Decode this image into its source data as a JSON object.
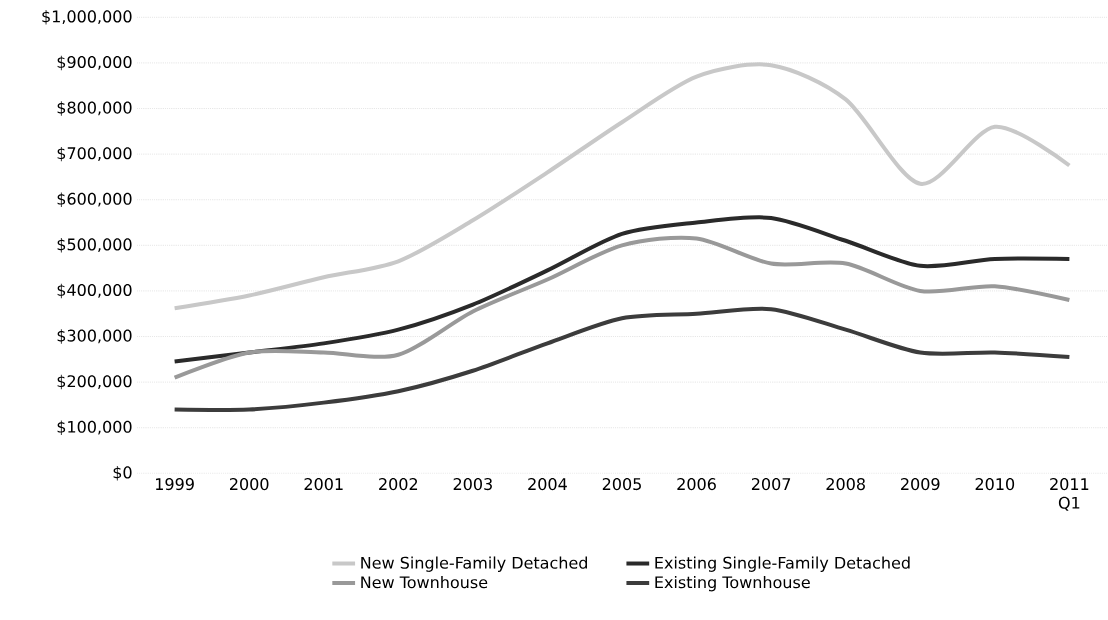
{
  "chart_data": {
    "type": "line",
    "categories": [
      "1999",
      "2000",
      "2001",
      "2002",
      "2003",
      "2004",
      "2005",
      "2006",
      "2007",
      "2008",
      "2009",
      "2010",
      "2011 Q1"
    ],
    "series": [
      {
        "name": "New Single-Family Detached",
        "color": "#c8c8c8",
        "values": [
          362000,
          390000,
          430000,
          465000,
          555000,
          660000,
          770000,
          870000,
          895000,
          820000,
          635000,
          760000,
          675000
        ]
      },
      {
        "name": "Existing Single-Family Detached",
        "color": "#2a2a2a",
        "values": [
          245000,
          265000,
          285000,
          315000,
          370000,
          445000,
          525000,
          550000,
          560000,
          510000,
          455000,
          470000,
          470000
        ]
      },
      {
        "name": "New Townhouse",
        "color": "#999999",
        "values": [
          210000,
          265000,
          265000,
          260000,
          355000,
          425000,
          500000,
          515000,
          460000,
          460000,
          400000,
          410000,
          380000
        ]
      },
      {
        "name": "Existing Townhouse",
        "color": "#3c3c3c",
        "values": [
          140000,
          140000,
          155000,
          180000,
          225000,
          285000,
          340000,
          350000,
          360000,
          315000,
          265000,
          265000,
          255000
        ]
      }
    ],
    "ylim": [
      0,
      1000000
    ],
    "yticks": [
      {
        "value": 0,
        "label": "$0"
      },
      {
        "value": 100000,
        "label": "$100,000"
      },
      {
        "value": 200000,
        "label": "$200,000"
      },
      {
        "value": 300000,
        "label": "$300,000"
      },
      {
        "value": 400000,
        "label": "$400,000"
      },
      {
        "value": 500000,
        "label": "$500,000"
      },
      {
        "value": 600000,
        "label": "$600,000"
      },
      {
        "value": 700000,
        "label": "$700,000"
      },
      {
        "value": 800000,
        "label": "$800,000"
      },
      {
        "value": 900000,
        "label": "$900,000"
      },
      {
        "value": 1000000,
        "label": "$1,000,000"
      }
    ],
    "grid": "y",
    "legend": "bottom",
    "marker": "none",
    "line_style": "solid"
  }
}
